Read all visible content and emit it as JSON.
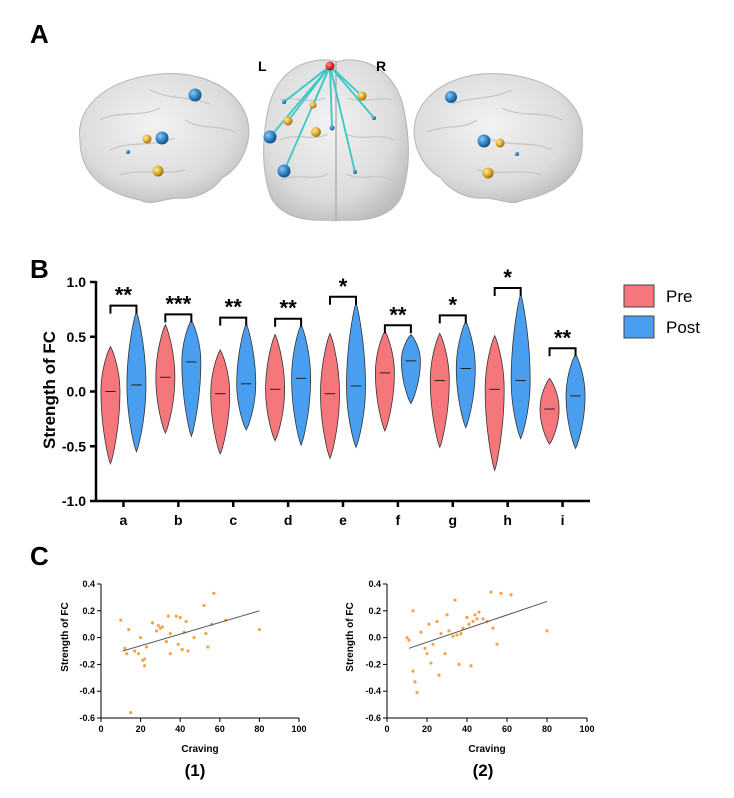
{
  "panels": {
    "a": "A",
    "b": "B",
    "c": "C"
  },
  "brain": {
    "left_label": "L",
    "right_label": "R"
  },
  "chart_data": [
    {
      "type": "violin",
      "ylabel": "Strength of FC",
      "ylim": [
        -1.0,
        1.0
      ],
      "yticks": [
        "1.0",
        "0.5",
        "0.0",
        "-0.5",
        "-1.0"
      ],
      "categories": [
        "a",
        "b",
        "c",
        "d",
        "e",
        "f",
        "g",
        "h",
        "i"
      ],
      "significance": [
        "**",
        "***",
        "**",
        "**",
        "*",
        "**",
        "*",
        "*",
        "**"
      ],
      "legend": {
        "position": "right",
        "entries": [
          "Pre",
          "Post"
        ]
      },
      "colors": {
        "pre": "#f5777c",
        "post": "#4a9ef0"
      },
      "series": [
        {
          "name": "Pre",
          "min": [
            -0.66,
            -0.38,
            -0.57,
            -0.45,
            -0.61,
            -0.36,
            -0.51,
            -0.72,
            -0.48
          ],
          "median": [
            0.0,
            0.13,
            -0.02,
            0.02,
            -0.02,
            0.17,
            0.1,
            0.02,
            -0.16
          ],
          "max": [
            0.41,
            0.61,
            0.38,
            0.52,
            0.53,
            0.55,
            0.53,
            0.51,
            0.12
          ]
        },
        {
          "name": "Post",
          "min": [
            -0.55,
            -0.41,
            -0.35,
            -0.49,
            -0.51,
            -0.11,
            -0.33,
            -0.43,
            -0.52
          ],
          "median": [
            0.06,
            0.27,
            0.07,
            0.12,
            0.05,
            0.28,
            0.21,
            0.1,
            -0.04
          ],
          "max": [
            0.73,
            0.65,
            0.62,
            0.61,
            0.81,
            0.52,
            0.64,
            0.89,
            0.34
          ]
        }
      ]
    },
    {
      "type": "scatter",
      "caption": "(1)",
      "xlabel": "Craving",
      "ylabel": "Strength of FC",
      "xlim": [
        0,
        100
      ],
      "ylim": [
        -0.6,
        0.4
      ],
      "xticks": [
        "0",
        "20",
        "40",
        "60",
        "80",
        "100"
      ],
      "yticks": [
        "0.4",
        "0.2",
        "0.0",
        "-0.2",
        "-0.4",
        "-0.6"
      ],
      "point_color": "#f6a348",
      "points": [
        [
          10,
          0.13
        ],
        [
          12,
          -0.08
        ],
        [
          13,
          -0.12
        ],
        [
          14,
          0.06
        ],
        [
          15,
          -0.56
        ],
        [
          17,
          -0.1
        ],
        [
          19,
          -0.12
        ],
        [
          20,
          0.0
        ],
        [
          21,
          -0.17
        ],
        [
          22,
          -0.21
        ],
        [
          22,
          -0.16
        ],
        [
          23,
          -0.07
        ],
        [
          26,
          0.11
        ],
        [
          28,
          0.05
        ],
        [
          29,
          0.09
        ],
        [
          30,
          0.07
        ],
        [
          31,
          0.08
        ],
        [
          33,
          -0.03
        ],
        [
          34,
          0.16
        ],
        [
          35,
          0.03
        ],
        [
          35,
          -0.12
        ],
        [
          38,
          0.16
        ],
        [
          39,
          -0.05
        ],
        [
          40,
          0.15
        ],
        [
          41,
          -0.09
        ],
        [
          42,
          0.04
        ],
        [
          43,
          0.12
        ],
        [
          44,
          -0.1
        ],
        [
          47,
          0.0
        ],
        [
          52,
          0.24
        ],
        [
          53,
          0.03
        ],
        [
          54,
          -0.07
        ],
        [
          56,
          0.1
        ],
        [
          57,
          0.33
        ],
        [
          63,
          0.13
        ],
        [
          80,
          0.06
        ]
      ],
      "fit_line": {
        "x": [
          11,
          80
        ],
        "y": [
          -0.1,
          0.2
        ]
      }
    },
    {
      "type": "scatter",
      "caption": "(2)",
      "xlabel": "Craving",
      "ylabel": "Strength of FC",
      "xlim": [
        0,
        100
      ],
      "ylim": [
        -0.6,
        0.4
      ],
      "xticks": [
        "0",
        "20",
        "40",
        "60",
        "80",
        "100"
      ],
      "yticks": [
        "0.4",
        "0.2",
        "0.0",
        "-0.2",
        "-0.4",
        "-0.6"
      ],
      "point_color": "#f6a348",
      "points": [
        [
          10,
          0.0
        ],
        [
          11,
          -0.02
        ],
        [
          13,
          -0.25
        ],
        [
          13,
          0.2
        ],
        [
          14,
          -0.33
        ],
        [
          15,
          -0.41
        ],
        [
          17,
          0.04
        ],
        [
          19,
          -0.08
        ],
        [
          20,
          -0.12
        ],
        [
          21,
          0.1
        ],
        [
          22,
          -0.19
        ],
        [
          23,
          -0.05
        ],
        [
          25,
          0.12
        ],
        [
          26,
          -0.28
        ],
        [
          27,
          0.03
        ],
        [
          29,
          -0.12
        ],
        [
          30,
          0.17
        ],
        [
          31,
          0.05
        ],
        [
          33,
          0.01
        ],
        [
          34,
          0.28
        ],
        [
          35,
          0.02
        ],
        [
          36,
          -0.2
        ],
        [
          37,
          0.03
        ],
        [
          38,
          0.07
        ],
        [
          40,
          0.15
        ],
        [
          41,
          0.1
        ],
        [
          42,
          -0.21
        ],
        [
          43,
          0.12
        ],
        [
          44,
          0.17
        ],
        [
          45,
          0.14
        ],
        [
          46,
          0.19
        ],
        [
          48,
          0.14
        ],
        [
          50,
          0.12
        ],
        [
          52,
          0.34
        ],
        [
          53,
          0.07
        ],
        [
          55,
          -0.05
        ],
        [
          57,
          0.33
        ],
        [
          62,
          0.32
        ],
        [
          80,
          0.05
        ]
      ],
      "fit_line": {
        "x": [
          11,
          80
        ],
        "y": [
          -0.08,
          0.27
        ]
      }
    }
  ]
}
